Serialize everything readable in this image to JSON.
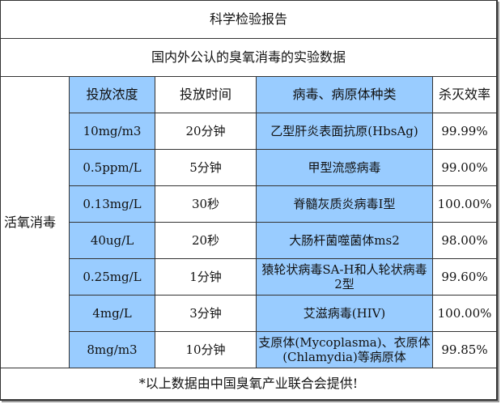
{
  "title": "科学检验报告",
  "subtitle": "国内外公认的臭氧消毒的实验数据",
  "category": "活氧消毒",
  "headers": [
    "投放浓度",
    "投放时间",
    "病毒、病原体种类",
    "杀灭效率"
  ],
  "rows": [
    [
      "10mg/m3",
      "20分钟",
      "乙型肝炎表面抗原(HbsAg)",
      "99.99%"
    ],
    [
      "0.5ppm/L",
      "5分钟",
      "甲型流感病毒",
      "99.00%"
    ],
    [
      "0.13mg/L",
      "30秒",
      "脊髓灰质炎病毒I型",
      "100.00%"
    ],
    [
      "40ug/L",
      "20秒",
      "大肠杆菌噬菌体ms2",
      "98.00%"
    ],
    [
      "0.25mg/L",
      "1分钟",
      "猿轮状病毒SA-H和人轮状病毒2型",
      "99.60%"
    ],
    [
      "4mg/L",
      "3分钟",
      "艾滋病毒(HIV)",
      "100.00%"
    ],
    [
      "8mg/m3",
      "10分钟",
      "支原体(Mycoplasma)、衣原体(Chlamydia)等病原体",
      "99.85%"
    ]
  ],
  "footer": "*以上数据由中国臭氧产业联合会提供!",
  "colors": {
    "highlight": "#99ccff",
    "border": "#333333"
  }
}
